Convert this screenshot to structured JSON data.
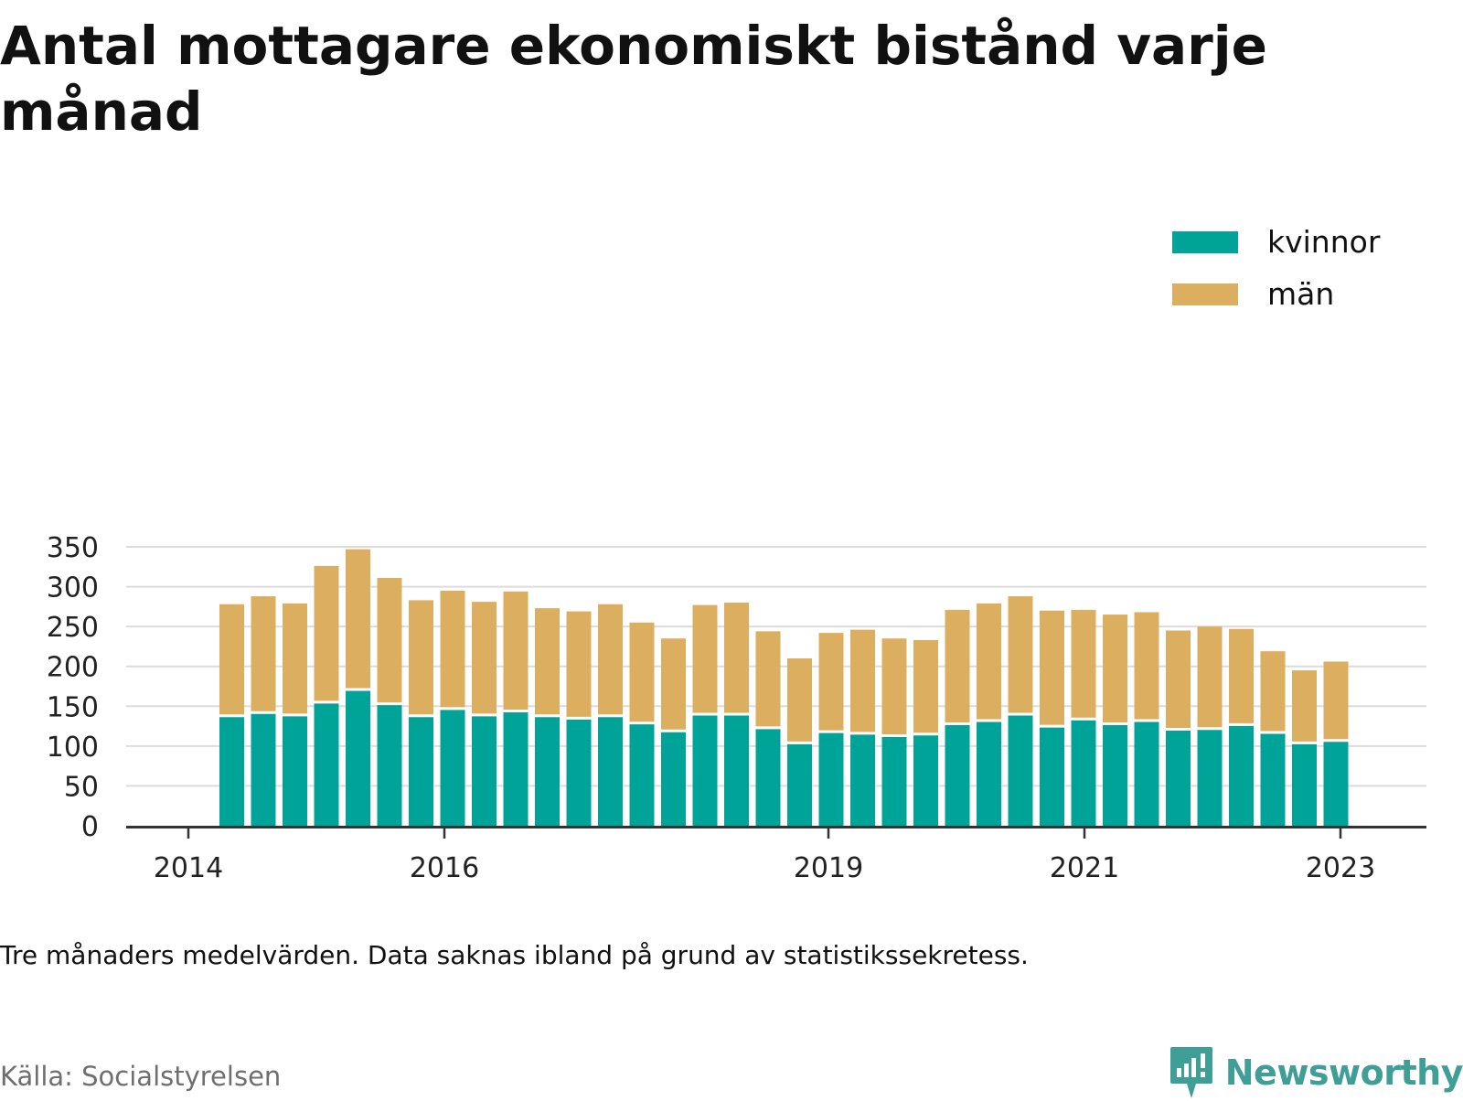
{
  "chart_data": {
    "type": "bar",
    "stacked": true,
    "title": "Antal mottagare ekonomiskt bistånd varje månad",
    "ylim": [
      0,
      360
    ],
    "y_ticks": [
      0,
      50,
      100,
      150,
      200,
      250,
      300,
      350
    ],
    "x_ticks": [
      "2014",
      "2016",
      "2019",
      "2021",
      "2023"
    ],
    "grid": true,
    "legend_position": "top-right",
    "series": [
      {
        "name": "kvinnor",
        "color": "#00a398",
        "values": [
          138,
          142,
          139,
          155,
          171,
          153,
          138,
          147,
          139,
          144,
          138,
          135,
          138,
          129,
          119,
          140,
          140,
          123,
          104,
          118,
          116,
          113,
          115,
          128,
          132,
          140,
          125,
          134,
          128,
          132,
          121,
          122,
          127,
          117,
          104,
          107
        ]
      },
      {
        "name": "män",
        "color": "#dbaf5f",
        "values": [
          140,
          146,
          140,
          171,
          176,
          158,
          145,
          148,
          142,
          150,
          135,
          134,
          140,
          126,
          116,
          137,
          140,
          121,
          106,
          124,
          130,
          122,
          118,
          143,
          147,
          148,
          145,
          137,
          137,
          136,
          124,
          128,
          120,
          102,
          91,
          99
        ]
      }
    ]
  },
  "note": "Tre månaders medelvärden. Data saknas ibland på grund av statistikssekretess.",
  "source": "Källa: Socialstyrelsen",
  "brand": {
    "name": "Newsworthy",
    "color": "#3f9e96"
  }
}
